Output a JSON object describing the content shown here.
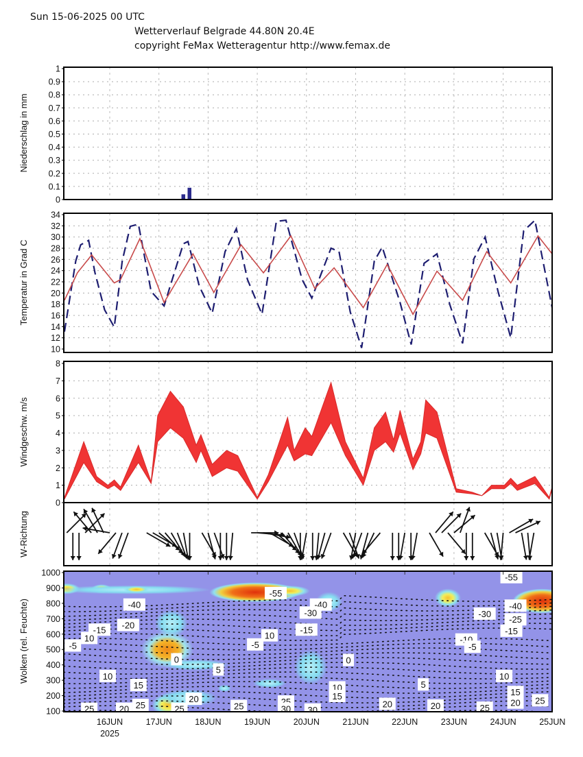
{
  "header": {
    "date_line": "Sun 15-06-2025 00 UTC",
    "title_line": "Wetterverlauf Belgrade  44.80N 20.4E",
    "copyright_line": "copyright FeMax Wetteragentur http://www.femax.de"
  },
  "x_axis": {
    "start_label": "15JUN 2025 00 UTC (hours from start)",
    "day_labels": [
      "16JUN",
      "17JUN",
      "18JUN",
      "19JUN",
      "20JUN",
      "21JUN",
      "22JUN",
      "23JUN",
      "24JUN",
      "25JUN"
    ],
    "year_label": "2025",
    "range_hours": [
      1.5,
      240
    ]
  },
  "colors": {
    "precip": "#2b2b8c",
    "temp_dashed": "#1d1d70",
    "temp_solid": "#c84a4a",
    "wind": "#f03434",
    "cloud_bg": "#9393e8",
    "axis": "#000000"
  },
  "chart_data": [
    {
      "type": "bar",
      "ylabel": "Niederschlag in mm",
      "ylim": [
        0,
        1
      ],
      "yticks": [
        "0",
        "0.1",
        "0.2",
        "0.3",
        "0.4",
        "0.5",
        "0.6",
        "0.7",
        "0.8",
        "0.9",
        "1"
      ],
      "x_hours": [
        60,
        63
      ],
      "values": [
        0.04,
        0.09
      ],
      "grid": true
    },
    {
      "type": "line",
      "ylabel": "Temperatur in Grad C",
      "ylim": [
        10,
        34
      ],
      "yticks": [
        "10",
        "12",
        "14",
        "16",
        "18",
        "20",
        "22",
        "24",
        "26",
        "28",
        "30",
        "32",
        "34"
      ],
      "grid": true,
      "series": [
        {
          "name": "dashed",
          "style": "dashed",
          "x": [
            1.9,
            7.4,
            9.8,
            13.7,
            16.8,
            21.5,
            26.2,
            30.1,
            34,
            38,
            44.2,
            50.5,
            59.9,
            62.2,
            67.7,
            74,
            80.3,
            85.8,
            91.2,
            98.3,
            105.3,
            110,
            117.9,
            122.6,
            132,
            135.9,
            141.4,
            146.9,
            153.1,
            157,
            165.7,
            171.1,
            177.4,
            183.7,
            190,
            196.2,
            201.7,
            207.2,
            213.5,
            219.7,
            226,
            231.5,
            240
          ],
          "values": [
            13.1,
            25.7,
            28.6,
            29.4,
            23.6,
            17,
            13.9,
            25.7,
            31.9,
            32.3,
            20.3,
            17.7,
            28.8,
            29.2,
            21.2,
            16.4,
            27.4,
            31.5,
            22.4,
            16.2,
            32.8,
            33,
            22.4,
            19.1,
            28,
            27.4,
            16.6,
            10.2,
            25.7,
            28.2,
            18.3,
            10.8,
            25.3,
            27,
            17.9,
            11,
            26.1,
            30,
            20.3,
            12,
            31.1,
            33,
            17.4
          ]
        },
        {
          "name": "solid",
          "style": "solid",
          "x": [
            1.9,
            8.2,
            15.2,
            26.2,
            29.3,
            38.7,
            50.5,
            64.6,
            74.8,
            88.1,
            99,
            112.4,
            124.1,
            133.5,
            147.7,
            159.4,
            172,
            183.7,
            196.2,
            208,
            219.7,
            233,
            240
          ],
          "values": [
            18.7,
            23.6,
            26.8,
            21.8,
            22.4,
            29.7,
            18.3,
            27,
            20.1,
            28.6,
            23.6,
            30.2,
            20.8,
            24.5,
            17.4,
            25.1,
            16.2,
            23.9,
            18.7,
            27.4,
            21.8,
            30.2,
            27
          ]
        }
      ]
    },
    {
      "type": "area",
      "ylabel": "Windgeschw. m/s",
      "ylim": [
        0,
        8
      ],
      "yticks": [
        "0",
        "1",
        "2",
        "3",
        "4",
        "5",
        "6",
        "7",
        "8"
      ],
      "grid": true,
      "x": [
        1.9,
        11.3,
        17.6,
        23.1,
        26.2,
        29.3,
        38,
        44.2,
        47.4,
        53.6,
        59.9,
        66.2,
        68.5,
        74,
        81,
        86.5,
        96,
        101.4,
        110.8,
        114,
        119.4,
        122.6,
        132,
        139,
        147.7,
        153.1,
        158.6,
        162.5,
        165.7,
        172,
        175.8,
        178.2,
        183.7,
        193.1,
        200.9,
        205.6,
        210.3,
        216.6,
        219.7,
        222.9,
        231.5,
        238.5,
        240
      ],
      "low": [
        0.2,
        2.3,
        1.2,
        0.8,
        1.0,
        0.7,
        2.3,
        1.1,
        3.5,
        4.3,
        3.7,
        2.3,
        3.0,
        1.5,
        2.0,
        1.8,
        0.2,
        1.2,
        3.3,
        2.4,
        2.8,
        2.7,
        4.6,
        2.7,
        1.0,
        3.0,
        3.5,
        2.9,
        4.0,
        1.9,
        2.8,
        4.0,
        3.7,
        0.6,
        0.5,
        0.4,
        0.8,
        0.8,
        1.1,
        0.7,
        1.1,
        0.2,
        0.8
      ],
      "high": [
        0.3,
        3.5,
        1.5,
        1.0,
        1.3,
        0.9,
        3.3,
        1.2,
        5.0,
        6.4,
        5.5,
        3.3,
        3.9,
        2.2,
        3.0,
        2.7,
        0.3,
        1.6,
        4.9,
        3.0,
        4.3,
        3.8,
        6.9,
        3.5,
        1.4,
        4.3,
        5.2,
        3.6,
        5.3,
        2.5,
        3.5,
        5.9,
        5.2,
        0.8,
        0.6,
        0.4,
        1.0,
        1.0,
        1.4,
        1.0,
        1.5,
        0.3,
        0.9
      ]
    },
    {
      "type": "scatter",
      "ylabel": "W-Richtung",
      "x_step_hours": 3,
      "from_direction_deg": [
        225,
        0,
        0,
        225,
        140,
        150,
        155,
        100,
        40,
        20,
        20,
        null,
        null,
        300,
        300,
        310,
        320,
        330,
        340,
        350,
        0,
        null,
        330,
        345,
        340,
        0,
        0,
        5,
        null,
        null,
        270,
        275,
        280,
        300,
        310,
        320,
        330,
        340,
        0,
        10,
        0,
        5,
        15,
        20,
        null,
        330,
        340,
        10,
        20,
        15,
        25,
        40,
        null,
        0,
        0,
        10,
        0,
        10,
        null,
        330,
        220,
        225,
        320,
        230,
        200,
        0,
        0,
        null,
        330,
        345,
        350,
        5,
        240,
        245,
        350,
        355,
        10,
        null,
        null
      ]
    },
    {
      "type": "heatmap",
      "ylabel": "Wolken (rel. Feuchte)",
      "ylim": [
        1000,
        100
      ],
      "yticks": [
        "100",
        "200",
        "300",
        "400",
        "500",
        "600",
        "700",
        "800",
        "900",
        "1000"
      ],
      "humidity_cells": [
        {
          "t": 3,
          "p": 205,
          "rt": 4,
          "rp": 22,
          "level": "yellow"
        },
        {
          "t": 20,
          "p": 205,
          "rt": 3,
          "rp": 18,
          "level": "yellow"
        },
        {
          "t": 35,
          "p": 212,
          "rt": 24,
          "rp": 18,
          "level": "cyan"
        },
        {
          "t": 37,
          "p": 210,
          "rt": 4,
          "rp": 14,
          "level": "yellow"
        },
        {
          "t": 95,
          "p": 228,
          "rt": 14,
          "rp": 40,
          "level": "red"
        },
        {
          "t": 112,
          "p": 220,
          "rt": 6,
          "rp": 22,
          "level": "yellow"
        },
        {
          "t": 131,
          "p": 290,
          "rt": 4,
          "rp": 40,
          "level": "cyan"
        },
        {
          "t": 54,
          "p": 430,
          "rt": 5,
          "rp": 55,
          "level": "cyan"
        },
        {
          "t": 52,
          "p": 600,
          "rt": 8,
          "rp": 75,
          "level": "orange"
        },
        {
          "t": 66,
          "p": 700,
          "rt": 10,
          "rp": 22,
          "level": "cyan"
        },
        {
          "t": 122,
          "p": 715,
          "rt": 5,
          "rp": 70,
          "level": "cyan"
        },
        {
          "t": 102,
          "p": 820,
          "rt": 5,
          "rp": 18,
          "level": "cyan"
        },
        {
          "t": 80,
          "p": 852,
          "rt": 2,
          "rp": 14,
          "level": "cyan"
        },
        {
          "t": 52.5,
          "p": 960,
          "rt": 5,
          "rp": 45,
          "level": "yellow"
        },
        {
          "t": 62,
          "p": 915,
          "rt": 9,
          "rp": 35,
          "level": "cyan"
        },
        {
          "t": 189,
          "p": 265,
          "rt": 4,
          "rp": 38,
          "level": "yellow"
        },
        {
          "t": 235,
          "p": 285,
          "rt": 9,
          "rp": 50,
          "level": "red"
        }
      ],
      "contour_labels": [
        {
          "text": "-40",
          "t": 36,
          "p": 308
        },
        {
          "text": "-20",
          "t": 33,
          "p": 441
        },
        {
          "text": "-15",
          "t": 19,
          "p": 471
        },
        {
          "text": "10",
          "t": 14,
          "p": 525
        },
        {
          "text": "-5",
          "t": 6,
          "p": 574
        },
        {
          "text": "-55",
          "t": 105,
          "p": 233
        },
        {
          "text": "-40",
          "t": 127,
          "p": 308
        },
        {
          "text": "-30",
          "t": 122,
          "p": 360
        },
        {
          "text": "-15",
          "t": 120,
          "p": 471
        },
        {
          "text": "10",
          "t": 102,
          "p": 508
        },
        {
          "text": "-5",
          "t": 95,
          "p": 567
        },
        {
          "text": "0",
          "t": 56.6,
          "p": 663
        },
        {
          "text": "5",
          "t": 77,
          "p": 730
        },
        {
          "text": "10",
          "t": 23,
          "p": 772
        },
        {
          "text": "15",
          "t": 38,
          "p": 831
        },
        {
          "text": "20",
          "t": 65,
          "p": 920
        },
        {
          "text": "25",
          "t": 87,
          "p": 967
        },
        {
          "text": "25",
          "t": 14,
          "p": 985
        },
        {
          "text": "25",
          "t": 39,
          "p": 960
        },
        {
          "text": "20",
          "t": 31,
          "p": 985
        },
        {
          "text": "25",
          "t": 58,
          "p": 985
        },
        {
          "text": "0",
          "t": 140.5,
          "p": 668
        },
        {
          "text": "10",
          "t": 135,
          "p": 846
        },
        {
          "text": "15",
          "t": 135,
          "p": 902
        },
        {
          "text": "20",
          "t": 159.5,
          "p": 953
        },
        {
          "text": "5",
          "t": 177,
          "p": 827
        },
        {
          "text": "20",
          "t": 183,
          "p": 964
        },
        {
          "text": "-30",
          "t": 207,
          "p": 367
        },
        {
          "text": "-10",
          "t": 198,
          "p": 535
        },
        {
          "text": "-5",
          "t": 201,
          "p": 582
        },
        {
          "text": "-55",
          "t": 220,
          "p": 130
        },
        {
          "text": "-40",
          "t": 222,
          "p": 315
        },
        {
          "text": "-25",
          "t": 222,
          "p": 404
        },
        {
          "text": "-15",
          "t": 220,
          "p": 478
        },
        {
          "text": "10",
          "t": 216.5,
          "p": 772
        },
        {
          "text": "15",
          "t": 222,
          "p": 876
        },
        {
          "text": "20",
          "t": 222,
          "p": 945
        },
        {
          "text": "25",
          "t": 234,
          "p": 930
        },
        {
          "text": "25",
          "t": 207,
          "p": 978
        },
        {
          "text": "25",
          "t": 110,
          "p": 938
        },
        {
          "text": "30",
          "t": 110,
          "p": 985
        },
        {
          "text": "30",
          "t": 123,
          "p": 990
        }
      ]
    }
  ]
}
